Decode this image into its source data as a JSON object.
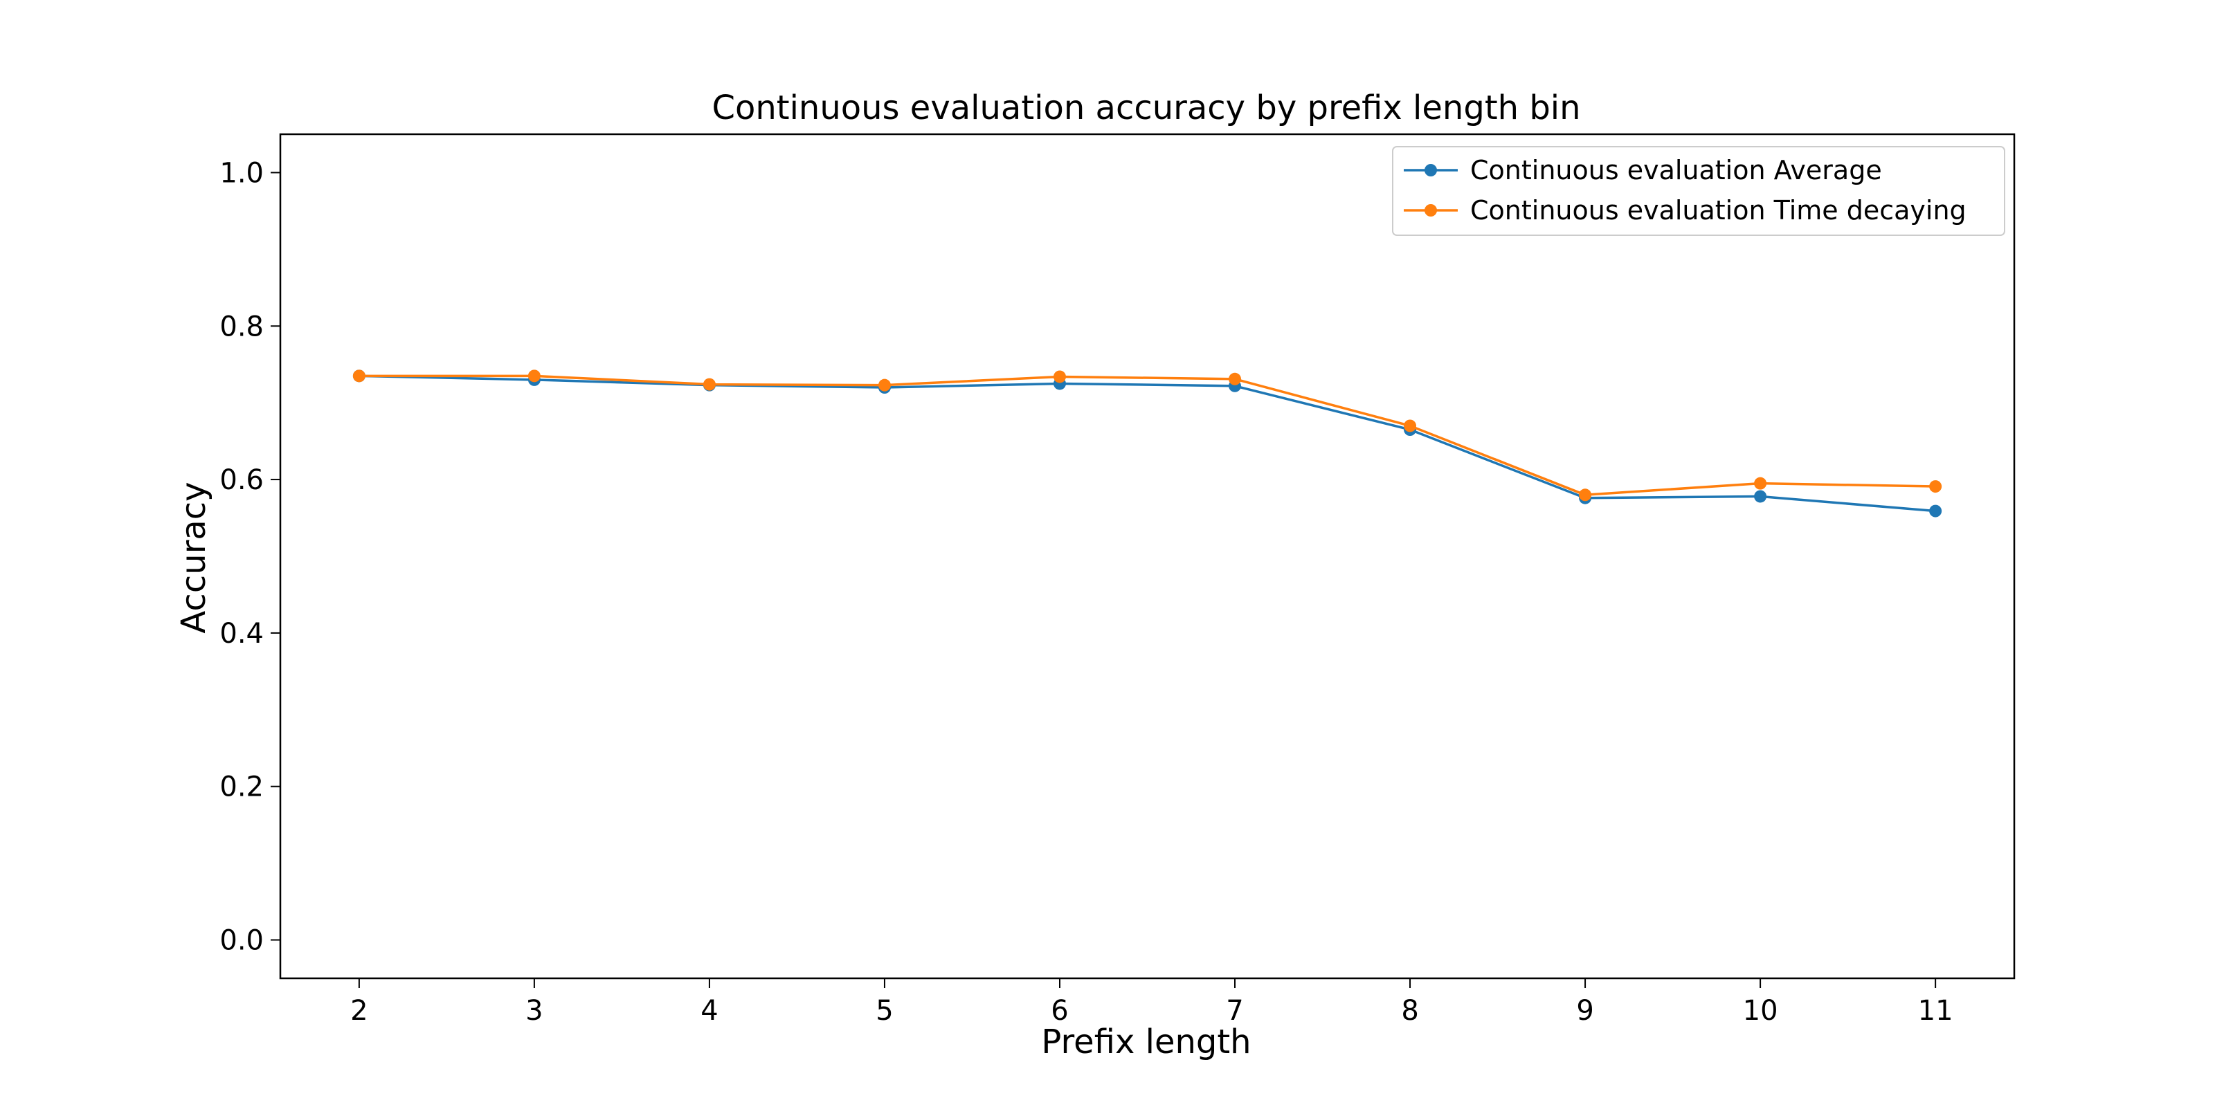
{
  "chart_data": {
    "type": "line",
    "title": "Continuous evaluation accuracy by prefix length bin",
    "xlabel": "Prefix length",
    "ylabel": "Accuracy",
    "x": [
      2,
      3,
      4,
      5,
      6,
      7,
      8,
      9,
      10,
      11
    ],
    "xticks": [
      "2",
      "3",
      "4",
      "5",
      "6",
      "7",
      "8",
      "9",
      "10",
      "11"
    ],
    "yticks": [
      "0.0",
      "0.2",
      "0.4",
      "0.6",
      "0.8",
      "1.0"
    ],
    "ytick_values": [
      0.0,
      0.2,
      0.4,
      0.6,
      0.8,
      1.0
    ],
    "xlim": [
      1.55,
      11.45
    ],
    "ylim": [
      -0.05,
      1.05
    ],
    "grid": false,
    "legend_position": "top-right",
    "series": [
      {
        "name": "Continuous evaluation Average",
        "color": "#1f77b4",
        "values": [
          0.735,
          0.73,
          0.723,
          0.72,
          0.725,
          0.722,
          0.665,
          0.576,
          0.578,
          0.559
        ]
      },
      {
        "name": "Continuous evaluation Time decaying",
        "color": "#ff7f0e",
        "values": [
          0.735,
          0.735,
          0.724,
          0.723,
          0.734,
          0.731,
          0.67,
          0.58,
          0.595,
          0.591
        ]
      }
    ]
  }
}
